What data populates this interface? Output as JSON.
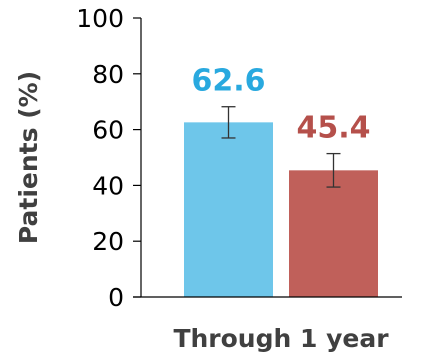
{
  "chart_data": {
    "type": "bar",
    "title": "",
    "xlabel": "Through 1 year",
    "ylabel": "Patients (%)",
    "ylim": [
      0,
      100
    ],
    "yticks": [
      0,
      20,
      40,
      60,
      80,
      100
    ],
    "grid": false,
    "legend": "none",
    "categories": [
      "Through 1 year"
    ],
    "series": [
      {
        "values": [
          62.6
        ],
        "value_labels": [
          "62.6"
        ],
        "error_low": [
          57.0
        ],
        "error_high": [
          68.2
        ],
        "color": "#6EC6EA",
        "label_color": "#29A9DF"
      },
      {
        "values": [
          45.4
        ],
        "value_labels": [
          "45.4"
        ],
        "error_low": [
          39.4
        ],
        "error_high": [
          51.4
        ],
        "color": "#C0605A",
        "label_color": "#B5504B"
      }
    ]
  }
}
